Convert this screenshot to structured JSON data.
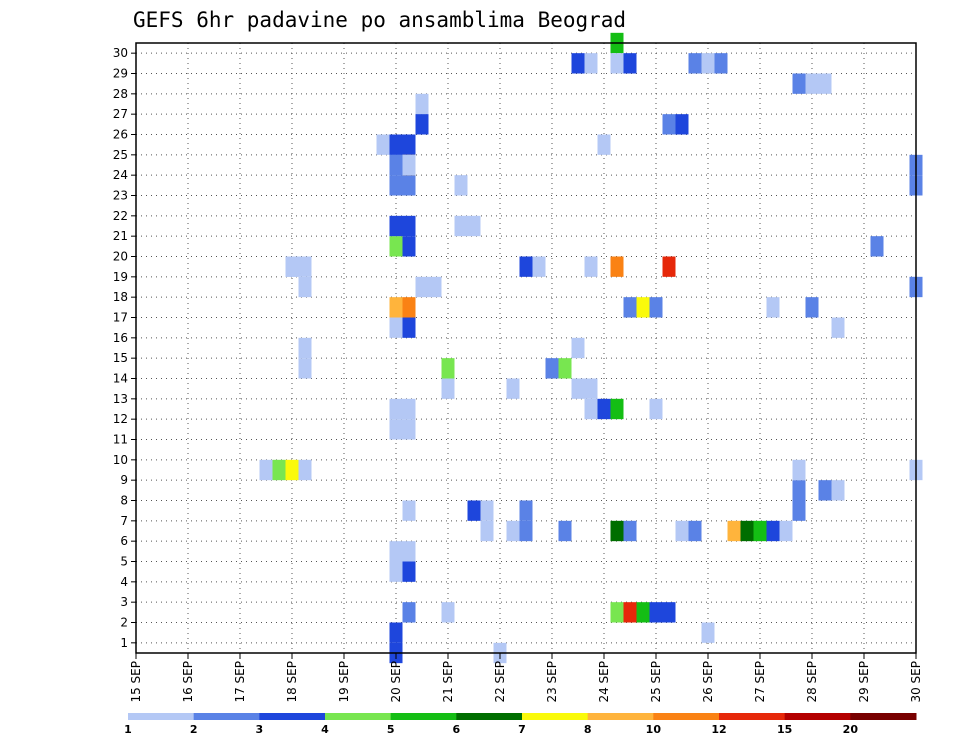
{
  "chart_data": {
    "type": "heatmap",
    "title": "GEFS 6hr padavine po ansamblima Beograd",
    "xlabel": "",
    "ylabel": "",
    "x_range": [
      "15 SEP 00Z",
      "30 SEP 00Z"
    ],
    "x_step_hours": 6,
    "x_tick_labels": [
      "15 SEP",
      "16 SEP",
      "17 SEP",
      "18 SEP",
      "19 SEP",
      "20 SEP",
      "21 SEP",
      "22 SEP",
      "23 SEP",
      "24 SEP",
      "25 SEP",
      "26 SEP",
      "27 SEP",
      "28 SEP",
      "29 SEP",
      "30 SEP"
    ],
    "y_tick_labels": [
      "1",
      "2",
      "3",
      "4",
      "5",
      "6",
      "7",
      "8",
      "9",
      "10",
      "11",
      "12",
      "13",
      "14",
      "15",
      "16",
      "17",
      "18",
      "19",
      "20",
      "21",
      "22",
      "23",
      "24",
      "25",
      "26",
      "27",
      "28",
      "29",
      "30"
    ],
    "ylim": [
      0,
      30
    ],
    "grid": true,
    "colorbar": {
      "thresholds": [
        1,
        2,
        3,
        4,
        5,
        6,
        7,
        8,
        10,
        12,
        15,
        20
      ],
      "labels": [
        "1",
        "2",
        "3",
        "4",
        "5",
        "6",
        "7",
        "8",
        "10",
        "12",
        "15",
        "20"
      ],
      "colors": [
        "#b4c8f5",
        "#5a82e6",
        "#1e46dc",
        "#78e650",
        "#14be14",
        "#006e00",
        "#fafa0a",
        "#ffb43c",
        "#fa8214",
        "#e6280a",
        "#b40000",
        "#780000"
      ]
    },
    "cells_note": "each cell: [x_index (6-hour step from 15 SEP 00Z), member, category index into colorbar]",
    "cells": [
      [
        10,
        9,
        0
      ],
      [
        11,
        9,
        3
      ],
      [
        12,
        9,
        6
      ],
      [
        13,
        9,
        0
      ],
      [
        13,
        14,
        0
      ],
      [
        13,
        15,
        0
      ],
      [
        13,
        18,
        0
      ],
      [
        12,
        19,
        0
      ],
      [
        13,
        19,
        0
      ],
      [
        12,
        19,
        0
      ],
      [
        20,
        24,
        1
      ],
      [
        20,
        25,
        1
      ],
      [
        19,
        25,
        0
      ],
      [
        20,
        25,
        2
      ],
      [
        21,
        25,
        2
      ],
      [
        20,
        23,
        1
      ],
      [
        21,
        23,
        1
      ],
      [
        21,
        24,
        7
      ],
      [
        20,
        24,
        1
      ],
      [
        21,
        24,
        0
      ],
      [
        22,
        26,
        0
      ],
      [
        22,
        27,
        0
      ],
      [
        22,
        26,
        2
      ],
      [
        20,
        20,
        3
      ],
      [
        21,
        20,
        2
      ],
      [
        20,
        21,
        2
      ],
      [
        21,
        21,
        2
      ],
      [
        20,
        17,
        7
      ],
      [
        21,
        17,
        8
      ],
      [
        20,
        16,
        0
      ],
      [
        21,
        16,
        2
      ],
      [
        20,
        11,
        0
      ],
      [
        21,
        11,
        0
      ],
      [
        20,
        12,
        0
      ],
      [
        21,
        12,
        0
      ],
      [
        21,
        7,
        0
      ],
      [
        20,
        5,
        0
      ],
      [
        21,
        5,
        0
      ],
      [
        21,
        4,
        2
      ],
      [
        20,
        4,
        0
      ],
      [
        21,
        2,
        1
      ],
      [
        20,
        1,
        2
      ],
      [
        20,
        0,
        2
      ],
      [
        22,
        18,
        0
      ],
      [
        23,
        18,
        0
      ],
      [
        24,
        14,
        3
      ],
      [
        24,
        13,
        0
      ],
      [
        25,
        21,
        0
      ],
      [
        26,
        21,
        0
      ],
      [
        25,
        23,
        0
      ],
      [
        24,
        2,
        0
      ],
      [
        26,
        7,
        2
      ],
      [
        27,
        7,
        0
      ],
      [
        27,
        6,
        0
      ],
      [
        29,
        6,
        0
      ],
      [
        30,
        6,
        1
      ],
      [
        30,
        7,
        1
      ],
      [
        28,
        0,
        0
      ],
      [
        30,
        19,
        2
      ],
      [
        31,
        19,
        0
      ],
      [
        29,
        13,
        0
      ],
      [
        32,
        14,
        1
      ],
      [
        33,
        14,
        3
      ],
      [
        34,
        15,
        0
      ],
      [
        34,
        29,
        2
      ],
      [
        35,
        29,
        0
      ],
      [
        33,
        6,
        1
      ],
      [
        35,
        19,
        0
      ],
      [
        34,
        13,
        0
      ],
      [
        35,
        13,
        0
      ],
      [
        35,
        12,
        0
      ],
      [
        36,
        12,
        2
      ],
      [
        37,
        12,
        4
      ],
      [
        36,
        25,
        0
      ],
      [
        37,
        19,
        8
      ],
      [
        37,
        30,
        4
      ],
      [
        37,
        29,
        0
      ],
      [
        38,
        29,
        2
      ],
      [
        37,
        6,
        5
      ],
      [
        38,
        6,
        1
      ],
      [
        37,
        2,
        3
      ],
      [
        38,
        2,
        9
      ],
      [
        39,
        2,
        4
      ],
      [
        40,
        2,
        2
      ],
      [
        41,
        2,
        2
      ],
      [
        38,
        17,
        1
      ],
      [
        39,
        17,
        6
      ],
      [
        40,
        17,
        1
      ],
      [
        40,
        12,
        0
      ],
      [
        41,
        26,
        1
      ],
      [
        42,
        26,
        2
      ],
      [
        41,
        19,
        9
      ],
      [
        42,
        6,
        0
      ],
      [
        43,
        6,
        1
      ],
      [
        43,
        29,
        1
      ],
      [
        44,
        29,
        0
      ],
      [
        45,
        29,
        1
      ],
      [
        44,
        1,
        0
      ],
      [
        46,
        6,
        7
      ],
      [
        47,
        6,
        5
      ],
      [
        48,
        6,
        4
      ],
      [
        49,
        6,
        2
      ],
      [
        50,
        6,
        0
      ],
      [
        49,
        17,
        0
      ],
      [
        51,
        28,
        1
      ],
      [
        52,
        28,
        0
      ],
      [
        51,
        8,
        1
      ],
      [
        51,
        7,
        1
      ],
      [
        51,
        9,
        0
      ],
      [
        52,
        17,
        1
      ],
      [
        53,
        8,
        1
      ],
      [
        54,
        8,
        0
      ],
      [
        54,
        16,
        0
      ],
      [
        53,
        28,
        0
      ],
      [
        57,
        20,
        1
      ],
      [
        60,
        23,
        1
      ],
      [
        60,
        24,
        1
      ],
      [
        60,
        18,
        1
      ],
      [
        60,
        9,
        0
      ]
    ]
  }
}
